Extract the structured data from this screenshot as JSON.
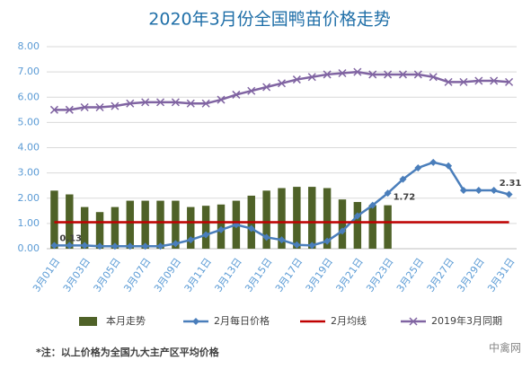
{
  "chart_data": {
    "type": "combo",
    "title": "2020年3月份全国鸭苗价格走势",
    "categories": [
      "3月01日",
      null,
      "3月03日",
      null,
      "3月05日",
      null,
      "3月07日",
      null,
      "3月09日",
      null,
      "3月11日",
      null,
      "3月13日",
      null,
      "3月15日",
      null,
      "3月17日",
      null,
      "3月19日",
      null,
      "3月21日",
      null,
      "3月23日",
      null,
      "3月25日",
      null,
      "3月27日",
      null,
      "3月29日",
      null,
      "3月31日"
    ],
    "ylim": [
      0,
      8
    ],
    "yticks": [
      {
        "value": 0,
        "label": "0.00"
      },
      {
        "value": 1,
        "label": "1.00"
      },
      {
        "value": 2,
        "label": "2.00"
      },
      {
        "value": 3,
        "label": "3.00"
      },
      {
        "value": 4,
        "label": "4.00"
      },
      {
        "value": 5,
        "label": "5.00"
      },
      {
        "value": 6,
        "label": "6.00"
      },
      {
        "value": 7,
        "label": "7.00"
      },
      {
        "value": 8,
        "label": "8.00"
      }
    ],
    "grid": true,
    "legend": "bottom",
    "series": [
      {
        "name": "本月走势",
        "kind": "bar",
        "color": "#4f6228",
        "values": [
          2.3,
          2.15,
          1.65,
          1.45,
          1.65,
          1.9,
          1.9,
          1.9,
          1.9,
          1.65,
          1.7,
          1.75,
          1.9,
          2.1,
          2.3,
          2.4,
          2.45,
          2.45,
          2.4,
          1.95,
          1.85,
          1.72,
          1.72,
          null,
          null,
          null,
          null,
          null,
          null,
          null,
          null
        ],
        "value_labels": [
          null,
          null,
          null,
          null,
          null,
          null,
          null,
          null,
          null,
          null,
          null,
          null,
          null,
          null,
          null,
          null,
          null,
          null,
          null,
          null,
          null,
          null,
          "1.72",
          null,
          null,
          null,
          null,
          null,
          null,
          null,
          null
        ]
      },
      {
        "name": "2月每日价格",
        "kind": "diamond",
        "color": "#4a7ebb",
        "values": [
          0.13,
          0.13,
          0.13,
          0.1,
          0.1,
          0.1,
          0.1,
          0.1,
          0.2,
          0.35,
          0.55,
          0.75,
          0.95,
          0.8,
          0.45,
          0.35,
          0.15,
          0.13,
          0.3,
          0.7,
          1.3,
          1.72,
          2.2,
          2.75,
          3.2,
          3.42,
          3.28,
          2.31,
          2.31,
          2.31,
          2.15
        ],
        "value_labels": [
          "0.13",
          null,
          null,
          null,
          null,
          null,
          null,
          null,
          null,
          null,
          null,
          null,
          null,
          null,
          null,
          null,
          null,
          null,
          null,
          null,
          null,
          null,
          null,
          null,
          null,
          null,
          null,
          null,
          null,
          "2.31",
          null
        ]
      },
      {
        "name": "2月均线",
        "kind": "line",
        "color": "#c00000",
        "values": [
          1.05,
          1.05,
          1.05,
          1.05,
          1.05,
          1.05,
          1.05,
          1.05,
          1.05,
          1.05,
          1.05,
          1.05,
          1.05,
          1.05,
          1.05,
          1.05,
          1.05,
          1.05,
          1.05,
          1.05,
          1.05,
          1.05,
          1.05,
          1.05,
          1.05,
          1.05,
          1.05,
          1.05,
          1.05,
          1.05,
          1.05
        ]
      },
      {
        "name": "2019年3月同期",
        "kind": "cross",
        "color": "#8064a2",
        "values": [
          5.5,
          5.5,
          5.6,
          5.6,
          5.65,
          5.75,
          5.8,
          5.8,
          5.8,
          5.75,
          5.75,
          5.9,
          6.1,
          6.25,
          6.4,
          6.55,
          6.7,
          6.8,
          6.9,
          6.95,
          7.0,
          6.9,
          6.9,
          6.9,
          6.9,
          6.8,
          6.6,
          6.6,
          6.65,
          6.65,
          6.6
        ]
      }
    ],
    "note": "*注：以上价格为全国九大主产区平均价格",
    "watermark": "中禽网"
  }
}
